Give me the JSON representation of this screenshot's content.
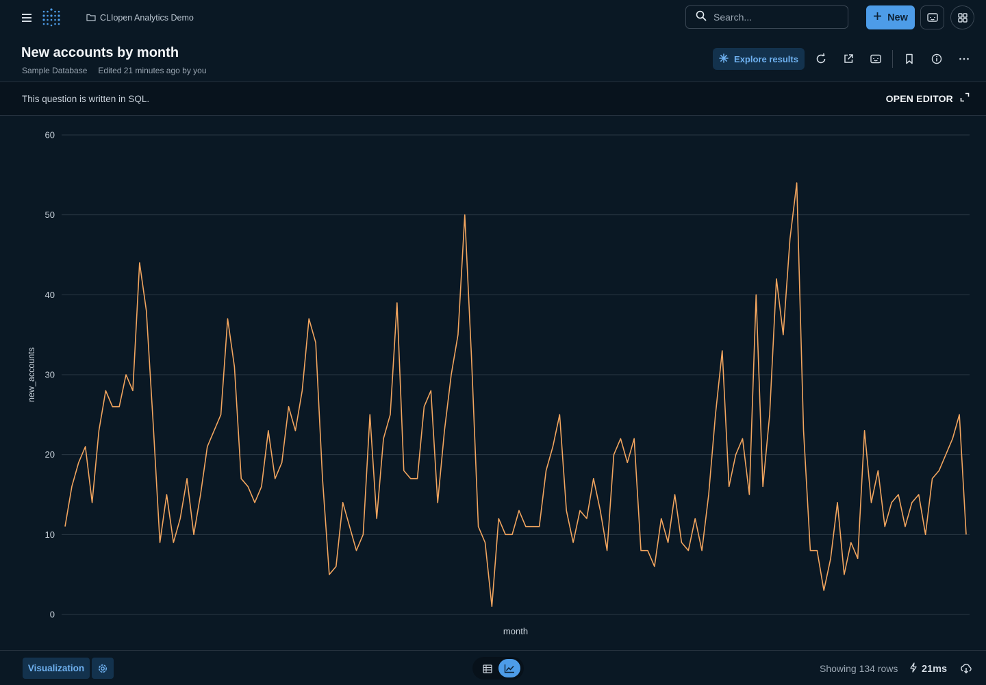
{
  "topbar": {
    "collection_name": "CLIopen Analytics Demo",
    "search_placeholder": "Search...",
    "new_label": "New",
    "icons": [
      "menu-icon",
      "logo-icon",
      "folder-icon",
      "search-icon",
      "plus-icon",
      "message-icon",
      "apps-grid-icon"
    ]
  },
  "header": {
    "title": "New accounts by month",
    "database": "Sample Database",
    "edited": "Edited 21 minutes ago by you",
    "explore_label": "Explore results",
    "icons": [
      "sparkle-icon",
      "refresh-icon",
      "share-icon",
      "embed-icon",
      "bookmark-icon",
      "info-icon",
      "more-icon"
    ]
  },
  "sqlbar": {
    "message": "This question is written in SQL.",
    "open_editor_label": "OPEN EDITOR"
  },
  "chart_data": {
    "type": "line",
    "title": "",
    "xlabel": "month",
    "ylabel": "new_accounts",
    "ylim": [
      0,
      60
    ],
    "yticks": [
      0,
      10,
      20,
      30,
      40,
      50,
      60
    ],
    "grid": true,
    "line_color": "#f2a55f",
    "series": [
      {
        "values": [
          11,
          16,
          19,
          21,
          14,
          23,
          28,
          26,
          26,
          30,
          28,
          44,
          38,
          24,
          9,
          15,
          9,
          12,
          17,
          10,
          15,
          21,
          23,
          25,
          37,
          31,
          17,
          16,
          14,
          16,
          23,
          17,
          19,
          26,
          23,
          28,
          37,
          34,
          17,
          5,
          6,
          14,
          11,
          8,
          10,
          25,
          12,
          22,
          25,
          39,
          18,
          17,
          17,
          26,
          28,
          14,
          23,
          30,
          35,
          50,
          32,
          11,
          9,
          1,
          12,
          10,
          10,
          13,
          11,
          11,
          11,
          18,
          21,
          25,
          13,
          9,
          13,
          12,
          17,
          13,
          8,
          20,
          22,
          19,
          22,
          8,
          8,
          6,
          12,
          9,
          15,
          9,
          8,
          12,
          8,
          15,
          25,
          33,
          16,
          20,
          22,
          15,
          40,
          16,
          25,
          42,
          35,
          47,
          54,
          23,
          8,
          8,
          3,
          7,
          14,
          5,
          9,
          7,
          23,
          14,
          18,
          11,
          14,
          15,
          11,
          14,
          15,
          10,
          17,
          18,
          20,
          22,
          25,
          10
        ]
      }
    ]
  },
  "footer": {
    "visualization_label": "Visualization",
    "rows_label": "Showing 134 rows",
    "timing_label": "21ms",
    "icons": [
      "gear-icon",
      "table-icon",
      "line-chart-icon",
      "bolt-icon",
      "download-icon"
    ]
  },
  "colors": {
    "background": "#0a1824",
    "accent": "#4d9ce8",
    "line": "#f2a55f",
    "grid": "#2b3844"
  }
}
